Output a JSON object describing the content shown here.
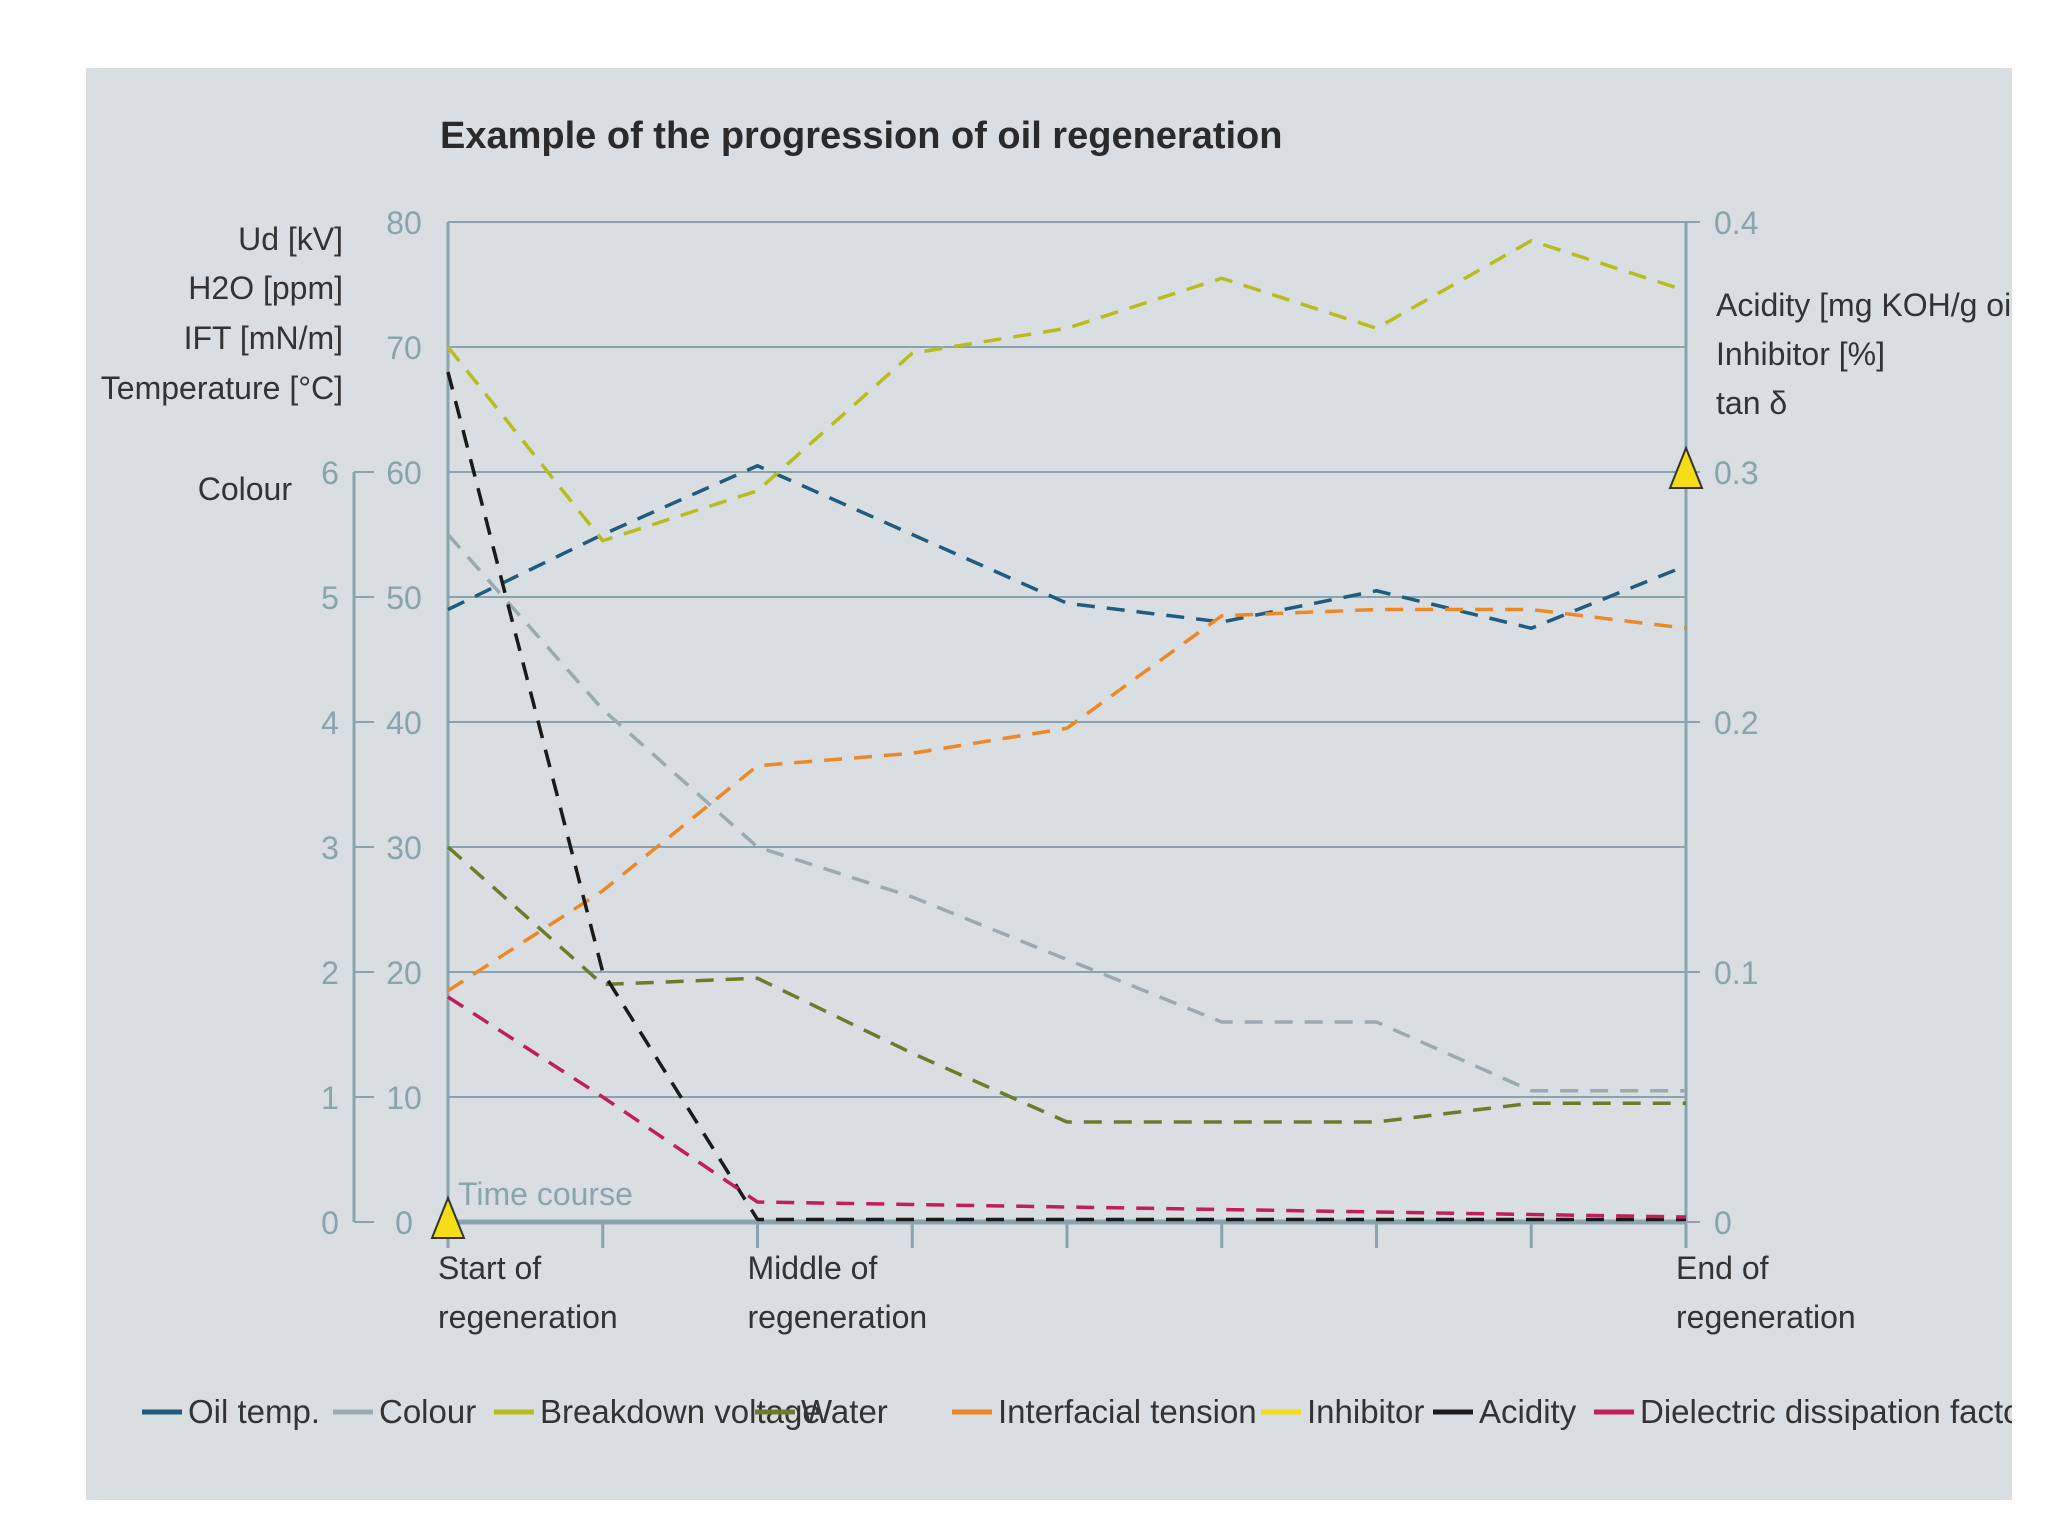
{
  "chart_data": {
    "type": "line",
    "title": "Example of the progression of oil regeneration",
    "left_axis_labels": [
      "Ud [kV]",
      "H2O [ppm]",
      "IFT [mN/m]",
      "Temperature [°C]"
    ],
    "colour_axis_label": "Colour",
    "right_axis_labels": [
      "Acidity [mg KOH/g oil]",
      "Inhibitor [%]",
      "tan δ"
    ],
    "left_axis": {
      "ticks": [
        "0",
        "10",
        "20",
        "30",
        "40",
        "50",
        "60",
        "70",
        "80"
      ],
      "range": [
        0,
        80
      ]
    },
    "colour_axis": {
      "ticks": [
        "0",
        "1",
        "2",
        "3",
        "4",
        "5",
        "6"
      ],
      "range": [
        0,
        8
      ]
    },
    "right_axis": {
      "ticks": [
        "0",
        "0.1",
        "0.2",
        "0.3",
        "0.4"
      ],
      "range": [
        0,
        0.4
      ]
    },
    "x": [
      0,
      1,
      2,
      3,
      4,
      5,
      6,
      7,
      8
    ],
    "x_labels": [
      {
        "x": 0,
        "line1": "Start of",
        "line2": "regeneration"
      },
      {
        "x": 2,
        "line1": "Middle of",
        "line2": "regeneration"
      },
      {
        "x": 8,
        "line1": "End of",
        "line2": "regeneration"
      }
    ],
    "time_course_label": "Time course",
    "series": [
      {
        "name": "Oil temp.",
        "color": "#1f5c7d",
        "style": "dashed",
        "values": [
          49,
          55,
          60.5,
          55,
          49.5,
          48,
          50.5,
          47.5,
          52.5
        ]
      },
      {
        "name": "Colour",
        "color": "#9aaab3",
        "style": "dashed",
        "values": [
          5.5,
          4.1,
          3.0,
          2.6,
          2.1,
          1.6,
          1.6,
          1.05,
          1.05
        ]
      },
      {
        "name": "Breakdown voltage",
        "color": "#b8bd1c",
        "style": "dashed",
        "values": [
          70,
          54.5,
          58.5,
          69.5,
          71.5,
          75.5,
          71.5,
          78.5,
          74.5
        ]
      },
      {
        "name": "Water",
        "color": "#6b7d2a",
        "style": "dashed",
        "values": [
          30,
          19,
          19.5,
          13.5,
          8,
          8,
          8,
          9.5,
          9.5
        ]
      },
      {
        "name": "Interfacial tension",
        "color": "#ed8826",
        "style": "dashed",
        "values": [
          18.5,
          26.5,
          36.5,
          37.5,
          39.5,
          48.5,
          49,
          49,
          47.5
        ]
      },
      {
        "name": "Inhibitor",
        "color": "#f5dd18",
        "style": "marker",
        "values": [
          0,
          null,
          null,
          null,
          null,
          null,
          null,
          null,
          0.3
        ]
      },
      {
        "name": "Acidity",
        "color": "#1a1a1a",
        "style": "dashed",
        "values": [
          0.34,
          0.1,
          0.001,
          0.001,
          0.001,
          0.001,
          0.001,
          0.001,
          0.001
        ]
      },
      {
        "name": "Dielectric dissipation factor",
        "color": "#c21f5a",
        "style": "dashed",
        "values": [
          0.09,
          0.05,
          0.008,
          0.007,
          0.006,
          0.005,
          0.004,
          0.003,
          0.002
        ]
      }
    ]
  }
}
